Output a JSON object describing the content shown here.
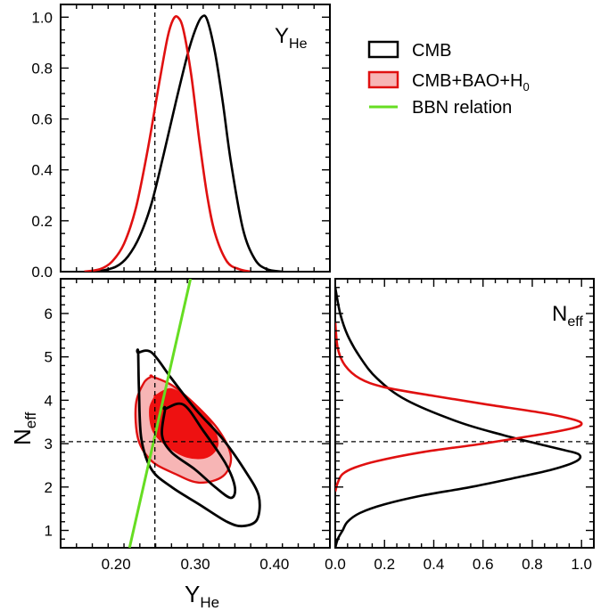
{
  "chart_data": [
    {
      "type": "line",
      "panel": "top-left",
      "corner_label": {
        "main": "Y",
        "sub": "He"
      },
      "xlim": [
        0.13,
        0.47
      ],
      "ylim": [
        0.0,
        1.05
      ],
      "yticks": [
        "0.0",
        "0.2",
        "0.4",
        "0.6",
        "0.8",
        "1.0"
      ],
      "reference_x": 0.249,
      "series": [
        {
          "name": "CMB",
          "color": "#000000",
          "x": [
            0.16,
            0.18,
            0.2,
            0.215,
            0.23,
            0.245,
            0.26,
            0.275,
            0.29,
            0.3,
            0.308,
            0.315,
            0.325,
            0.335,
            0.345,
            0.36,
            0.375,
            0.39,
            0.41
          ],
          "y": [
            0.0,
            0.003,
            0.02,
            0.06,
            0.14,
            0.27,
            0.46,
            0.66,
            0.85,
            0.95,
            1.0,
            0.99,
            0.86,
            0.66,
            0.43,
            0.17,
            0.05,
            0.01,
            0.0
          ]
        },
        {
          "name": "CMB+BAO+H0",
          "color": "#e01010",
          "x": [
            0.16,
            0.18,
            0.195,
            0.21,
            0.225,
            0.24,
            0.255,
            0.265,
            0.272,
            0.278,
            0.285,
            0.295,
            0.305,
            0.315,
            0.325,
            0.34,
            0.355,
            0.37
          ],
          "y": [
            0.0,
            0.01,
            0.04,
            0.11,
            0.25,
            0.48,
            0.75,
            0.92,
            0.99,
            1.0,
            0.95,
            0.77,
            0.52,
            0.3,
            0.15,
            0.04,
            0.01,
            0.0
          ]
        }
      ]
    },
    {
      "type": "contour",
      "panel": "bottom-left",
      "xlabel": {
        "main": "Y",
        "sub": "He"
      },
      "ylabel": {
        "main": "N",
        "sub": "eff"
      },
      "xlim": [
        0.13,
        0.47
      ],
      "ylim": [
        0.6,
        6.8
      ],
      "xticks": [
        "0.20",
        "0.30",
        "0.40"
      ],
      "yticks": [
        "1",
        "2",
        "3",
        "4",
        "5",
        "6"
      ],
      "reference_x": 0.249,
      "reference_y": 3.046,
      "bbn_relation": {
        "name": "BBN relation",
        "color": "#66dd22",
        "x": [
          0.217,
          0.294
        ],
        "y": [
          0.6,
          6.8
        ]
      },
      "contours": [
        {
          "series": "CMB+BAO+H0",
          "level": "95%",
          "fill": "#f7b5b5",
          "stroke": "#e01010",
          "x": [
            0.245,
            0.235,
            0.225,
            0.228,
            0.245,
            0.275,
            0.305,
            0.335,
            0.345,
            0.33,
            0.3,
            0.27,
            0.245
          ],
          "y": [
            4.55,
            4.4,
            3.9,
            3.1,
            2.6,
            2.3,
            2.1,
            2.25,
            2.7,
            3.3,
            3.9,
            4.35,
            4.55
          ]
        },
        {
          "series": "CMB+BAO+H0",
          "level": "68%",
          "fill": "#ee1111",
          "stroke": "#ee1111",
          "x": [
            0.25,
            0.243,
            0.247,
            0.265,
            0.29,
            0.315,
            0.328,
            0.318,
            0.295,
            0.27,
            0.25
          ],
          "y": [
            4.1,
            3.8,
            3.3,
            2.95,
            2.7,
            2.7,
            3.0,
            3.5,
            3.95,
            4.25,
            4.1
          ]
        },
        {
          "series": "CMB",
          "level": "95%",
          "fill": "none",
          "stroke": "#000000",
          "x": [
            0.228,
            0.229,
            0.232,
            0.245,
            0.27,
            0.305,
            0.34,
            0.36,
            0.378,
            0.38,
            0.362,
            0.335,
            0.3,
            0.27,
            0.245,
            0.228
          ],
          "y": [
            5.1,
            4.2,
            3.1,
            2.4,
            2.0,
            1.6,
            1.2,
            1.1,
            1.25,
            1.8,
            2.4,
            3.1,
            3.8,
            4.5,
            5.1,
            5.1
          ]
        },
        {
          "series": "CMB",
          "level": "68%",
          "fill": "none",
          "stroke": "#000000",
          "x": [
            0.262,
            0.258,
            0.27,
            0.3,
            0.325,
            0.345,
            0.35,
            0.338,
            0.31,
            0.285,
            0.262
          ],
          "y": [
            3.8,
            3.2,
            2.8,
            2.4,
            2.0,
            1.75,
            2.0,
            2.55,
            3.3,
            3.9,
            3.8
          ]
        }
      ]
    },
    {
      "type": "line",
      "panel": "bottom-right",
      "corner_label": {
        "main": "N",
        "sub": "eff"
      },
      "xlim": [
        0.0,
        1.05
      ],
      "ylim": [
        0.6,
        6.8
      ],
      "xticks": [
        "0.0",
        "0.2",
        "0.4",
        "0.6",
        "0.8",
        "1.0"
      ],
      "reference_y": 3.046,
      "series": [
        {
          "name": "CMB",
          "color": "#000000",
          "y": [
            6.6,
            6.0,
            5.5,
            5.0,
            4.5,
            4.0,
            3.5,
            3.2,
            3.0,
            2.85,
            2.75,
            2.6,
            2.4,
            2.2,
            2.0,
            1.8,
            1.6,
            1.4,
            1.2,
            1.0,
            0.8,
            0.6
          ],
          "x": [
            0.0,
            0.02,
            0.05,
            0.1,
            0.17,
            0.29,
            0.5,
            0.68,
            0.82,
            0.93,
            0.99,
            0.98,
            0.88,
            0.72,
            0.55,
            0.35,
            0.2,
            0.1,
            0.05,
            0.03,
            0.01,
            0.0
          ]
        },
        {
          "name": "CMB+BAO+H0",
          "color": "#e01010",
          "y": [
            5.8,
            5.2,
            4.8,
            4.5,
            4.3,
            4.1,
            3.9,
            3.7,
            3.55,
            3.45,
            3.35,
            3.2,
            3.0,
            2.8,
            2.6,
            2.45,
            2.3,
            2.1,
            1.9
          ],
          "x": [
            0.0,
            0.01,
            0.04,
            0.1,
            0.2,
            0.4,
            0.62,
            0.85,
            0.97,
            1.0,
            0.96,
            0.82,
            0.6,
            0.35,
            0.17,
            0.08,
            0.03,
            0.01,
            0.0
          ]
        }
      ]
    }
  ],
  "legend": {
    "placement": "top-right",
    "items": [
      {
        "key": "cmb",
        "label": "CMB",
        "swatch": "box-outline",
        "color": "#000000"
      },
      {
        "key": "cmb-bao-h0",
        "label": "CMB+BAO+H",
        "sub": "0",
        "swatch": "box-filled",
        "color": "#e01010",
        "fill": "#f7b5b5"
      },
      {
        "key": "bbn",
        "label": "BBN relation",
        "swatch": "line",
        "color": "#66dd22"
      }
    ]
  }
}
